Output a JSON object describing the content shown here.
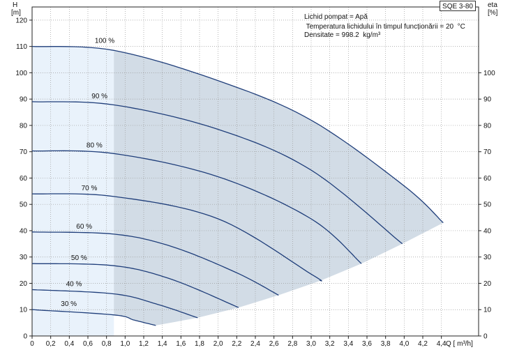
{
  "model": "SQE 3-80",
  "info_lines": [
    "Lichid pompat = Apă",
    " Temperatura lichidului în timpul funcționării = 20  °C",
    "Densitate = 998.2  kg/m³"
  ],
  "left_axis": {
    "name": "H",
    "unit": "[m]"
  },
  "right_axis": {
    "name": "eta",
    "unit": "[%]"
  },
  "colors": {
    "curve": "#1f3e7a",
    "operating_fill": "#d2dce6",
    "low_flow_fill": "#e9f2fb",
    "grid": "#9a9a9a",
    "text": "#111111"
  },
  "chart_data": {
    "type": "line",
    "title": "",
    "xlabel": "Q [ m³/h]",
    "ylabel": "H [m]",
    "y2label": "eta [%]",
    "xlim": [
      0,
      4.8
    ],
    "ylim": [
      0,
      125
    ],
    "xticks": [
      "0",
      "0,2",
      "0,4",
      "0,6",
      "0,8",
      "1,0",
      "1,2",
      "1,4",
      "1,6",
      "1,8",
      "2,0",
      "2,2",
      "2,4",
      "2,6",
      "2,8",
      "3,0",
      "3,2",
      "3,4",
      "3,6",
      "3,8",
      "4,0",
      "4,2",
      "4,4"
    ],
    "yticks": [
      "0",
      "10",
      "20",
      "30",
      "40",
      "50",
      "60",
      "70",
      "80",
      "90",
      "100",
      "110",
      "120"
    ],
    "y2ticks": [
      "0",
      "10",
      "20",
      "30",
      "40",
      "50",
      "60",
      "70",
      "80",
      "90",
      "100"
    ],
    "grid": true,
    "low_flow_limit_q": 0.88,
    "series": [
      {
        "name": "100 %",
        "x": [
          0,
          0.88,
          2.0,
          3.0,
          4.0,
          4.42
        ],
        "y": [
          110,
          108.5,
          97,
          82,
          57,
          43
        ]
      },
      {
        "name": "90 %",
        "x": [
          0,
          0.88,
          2.0,
          3.0,
          3.98
        ],
        "y": [
          89,
          87.8,
          78.5,
          63,
          35
        ]
      },
      {
        "name": "80 %",
        "x": [
          0,
          0.88,
          2.0,
          3.0,
          3.54
        ],
        "y": [
          70.3,
          69.3,
          60.5,
          44.5,
          27.5
        ]
      },
      {
        "name": "70 %",
        "x": [
          0,
          0.88,
          2.0,
          3.0,
          3.1
        ],
        "y": [
          54,
          53,
          44.5,
          23.5,
          21
        ]
      },
      {
        "name": "60 %",
        "x": [
          0,
          0.88,
          1.5,
          2.2,
          2.65
        ],
        "y": [
          39.5,
          38.7,
          34,
          24,
          15.5
        ]
      },
      {
        "name": "50 %",
        "x": [
          0,
          0.88,
          1.5,
          2.22
        ],
        "y": [
          27.5,
          26.7,
          21.5,
          10.8
        ]
      },
      {
        "name": "40 %",
        "x": [
          0,
          0.88,
          1.35,
          1.78
        ],
        "y": [
          17.6,
          16,
          12,
          6.9
        ]
      },
      {
        "name": "30 %",
        "x": [
          0,
          0.88,
          1.1,
          1.33
        ],
        "y": [
          10,
          8,
          6,
          4
        ]
      }
    ]
  }
}
